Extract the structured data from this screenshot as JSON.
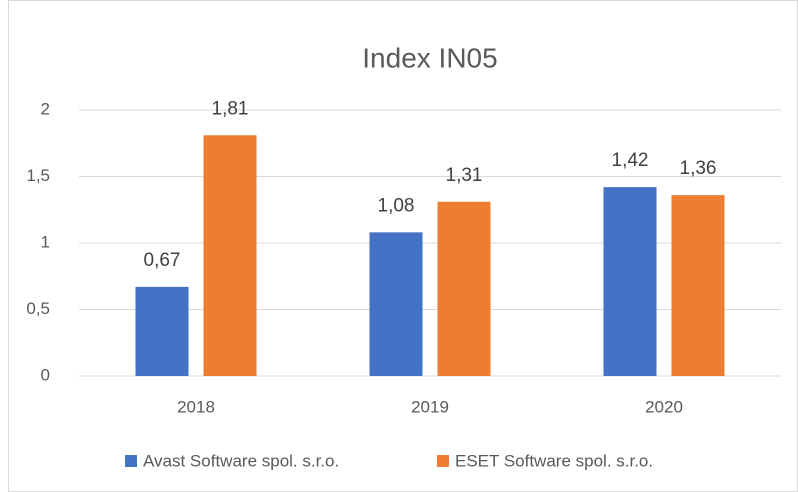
{
  "chart_data": {
    "type": "bar",
    "title": "Index IN05",
    "categories": [
      "2018",
      "2019",
      "2020"
    ],
    "series": [
      {
        "name": "Avast Software spol. s.r.o.",
        "color": "#4472c4",
        "values": [
          0.67,
          1.08,
          1.42
        ],
        "value_labels": [
          "0,67",
          "1,08",
          "1,42"
        ]
      },
      {
        "name": "ESET Software spol. s.r.o.",
        "color": "#ed7d31",
        "values": [
          1.81,
          1.31,
          1.36
        ],
        "value_labels": [
          "1,81",
          "1,31",
          "1,36"
        ]
      }
    ],
    "ylim": [
      0,
      2
    ],
    "yticks": [
      0,
      {
        "value": 0.5,
        "label": "0,5"
      },
      1,
      {
        "value": 1.5,
        "label": "1,5"
      },
      2
    ],
    "grid": true,
    "legend": "bottom"
  }
}
